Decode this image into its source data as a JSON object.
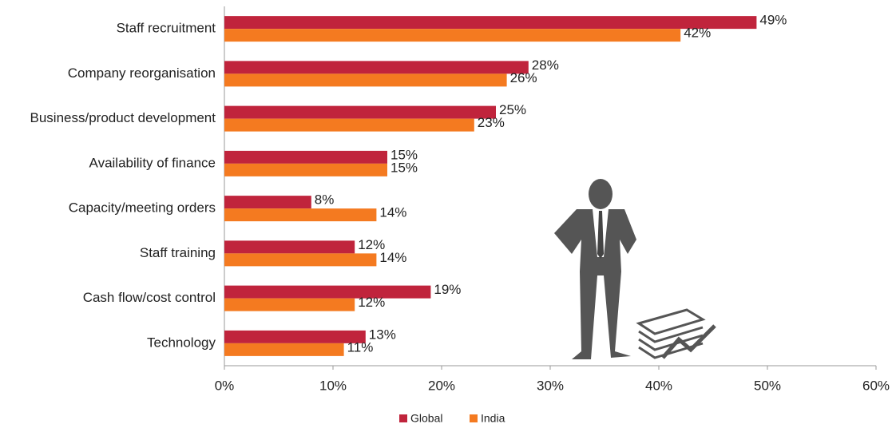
{
  "chart_data": {
    "type": "hbar",
    "categories": [
      "Staff recruitment",
      "Company reorganisation",
      "Business/product development",
      "Availability of finance",
      "Capacity/meeting orders",
      "Staff training",
      "Cash flow/cost control",
      "Technology"
    ],
    "series": [
      {
        "name": "Global",
        "color": "#c0243c",
        "values": [
          49,
          28,
          25,
          15,
          8,
          12,
          19,
          13
        ],
        "value_labels": [
          "49%",
          "28%",
          "25%",
          "15%",
          "8%",
          "12%",
          "19%",
          "13%"
        ]
      },
      {
        "name": "India",
        "color": "#f47a20",
        "values": [
          42,
          26,
          23,
          15,
          14,
          14,
          12,
          11
        ],
        "value_labels": [
          "42%",
          "26%",
          "23%",
          "15%",
          "14%",
          "14%",
          "12%",
          "11%"
        ]
      }
    ],
    "xlim": [
      0,
      60
    ],
    "xticks": [
      {
        "value": 0,
        "label": "0%"
      },
      {
        "value": 10,
        "label": "10%"
      },
      {
        "value": 20,
        "label": "20%"
      },
      {
        "value": 30,
        "label": "30%"
      },
      {
        "value": 40,
        "label": "40%"
      },
      {
        "value": 50,
        "label": "50%"
      },
      {
        "value": 60,
        "label": "60%"
      }
    ],
    "legend": "bottom"
  }
}
